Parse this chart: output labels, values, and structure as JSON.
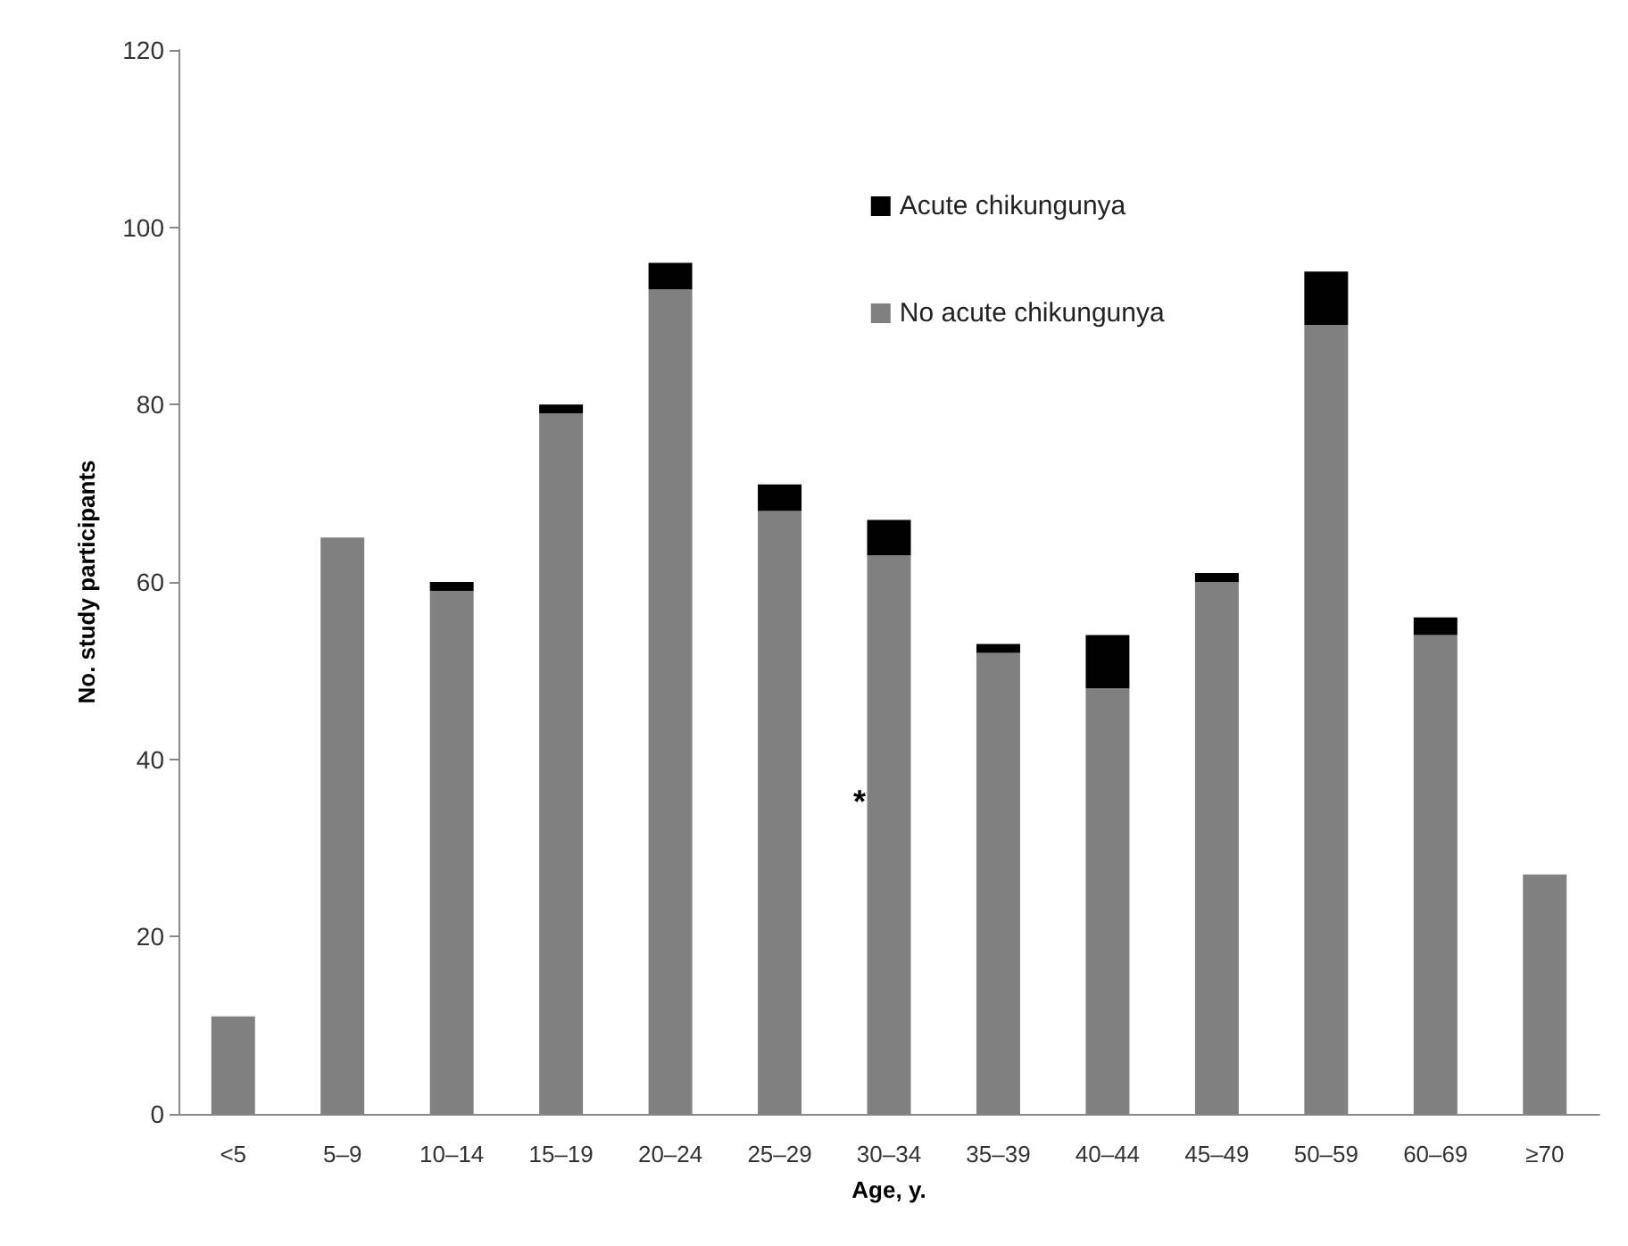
{
  "chart_data": {
    "type": "bar",
    "stacked": true,
    "xlabel": "Age, y.",
    "ylabel": "No. study participants",
    "categories": [
      "<5",
      "5–9",
      "10–14",
      "15–19",
      "20–24",
      "25–29",
      "30–34",
      "35–39",
      "40–44",
      "45–49",
      "50–59",
      "60–69",
      "≥70"
    ],
    "series": [
      {
        "name": "No acute chikungunya",
        "color": "#808080",
        "values": [
          11,
          65,
          59,
          79,
          93,
          68,
          63,
          52,
          48,
          60,
          89,
          54,
          27
        ]
      },
      {
        "name": "Acute chikungunya",
        "color": "#000000",
        "values": [
          0,
          0,
          1,
          1,
          3,
          3,
          4,
          1,
          6,
          1,
          6,
          2,
          0
        ]
      }
    ],
    "ylim": [
      0,
      120
    ],
    "yticks": [
      0,
      20,
      40,
      60,
      80,
      100,
      120
    ],
    "grid": false,
    "legend": "top",
    "annotations": [
      "*"
    ]
  }
}
